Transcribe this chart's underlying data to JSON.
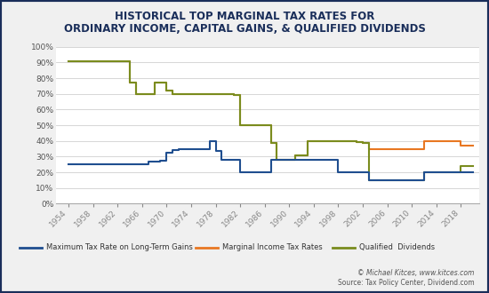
{
  "title_line1": "HISTORICAL TOP MARGINAL TAX RATES FOR",
  "title_line2": "ORDINARY INCOME, CAPITAL GAINS, & QUALIFIED DIVIDENDS",
  "title_color": "#1a2e5a",
  "background_color": "#f0f0f0",
  "plot_bg_color": "#ffffff",
  "border_color": "#1a2e5a",
  "years": [
    1954,
    1955,
    1956,
    1957,
    1958,
    1959,
    1960,
    1961,
    1962,
    1963,
    1964,
    1965,
    1966,
    1967,
    1968,
    1969,
    1970,
    1971,
    1972,
    1973,
    1974,
    1975,
    1976,
    1977,
    1978,
    1979,
    1980,
    1981,
    1982,
    1983,
    1984,
    1985,
    1986,
    1987,
    1988,
    1989,
    1990,
    1991,
    1992,
    1993,
    1994,
    1995,
    1996,
    1997,
    1998,
    1999,
    2000,
    2001,
    2002,
    2003,
    2004,
    2005,
    2006,
    2007,
    2008,
    2009,
    2010,
    2011,
    2012,
    2013,
    2014,
    2015,
    2016,
    2017,
    2018,
    2019,
    2020
  ],
  "marginal_income": [
    91,
    91,
    91,
    91,
    91,
    91,
    91,
    91,
    91,
    91,
    77,
    70,
    70,
    70,
    77,
    77,
    72,
    70,
    70,
    70,
    70,
    70,
    70,
    70,
    70,
    70,
    70,
    69.125,
    50,
    50,
    50,
    50,
    50,
    38.5,
    28,
    28,
    28,
    31,
    31,
    39.6,
    39.6,
    39.6,
    39.6,
    39.6,
    39.6,
    39.6,
    39.6,
    39.1,
    38.6,
    35,
    35,
    35,
    35,
    35,
    35,
    35,
    35,
    35,
    39.6,
    39.6,
    39.6,
    39.6,
    39.6,
    39.6,
    37,
    37,
    37
  ],
  "lt_capital_gains": [
    25,
    25,
    25,
    25,
    25,
    25,
    25,
    25,
    25,
    25,
    25,
    25,
    25,
    26.9,
    26.9,
    27.5,
    32.31,
    34.25,
    35,
    35,
    35,
    35,
    35,
    39.875,
    33.85,
    28,
    28,
    28,
    20,
    20,
    20,
    20,
    20,
    28,
    28,
    28,
    28,
    28,
    28,
    28,
    28,
    28,
    28,
    28,
    20,
    20,
    20,
    20,
    20,
    15,
    15,
    15,
    15,
    15,
    15,
    15,
    15,
    15,
    20,
    20,
    20,
    20,
    20,
    20,
    20,
    20,
    20
  ],
  "qualified_dividends": [
    91,
    91,
    91,
    91,
    91,
    91,
    91,
    91,
    91,
    91,
    77,
    70,
    70,
    70,
    77,
    77,
    72,
    70,
    70,
    70,
    70,
    70,
    70,
    70,
    70,
    70,
    70,
    69.125,
    50,
    50,
    50,
    50,
    50,
    38.5,
    28,
    28,
    28,
    31,
    31,
    39.6,
    39.6,
    39.6,
    39.6,
    39.6,
    39.6,
    39.6,
    39.6,
    39.1,
    38.6,
    15,
    15,
    15,
    15,
    15,
    15,
    15,
    15,
    15,
    20,
    20,
    20,
    20,
    20,
    20,
    23.8,
    23.8,
    23.8
  ],
  "line_color_marginal": "#e87722",
  "line_color_ltcg": "#1f4e8f",
  "line_color_qual_div": "#7a8c1e",
  "legend_labels": [
    "Maximum Tax Rate on Long-Term Gains",
    "Marginal Income Tax Rates",
    "Qualified  Dividends"
  ],
  "legend_colors": [
    "#1f4e8f",
    "#e87722",
    "#7a8c1e"
  ],
  "footer_italic": "© Michael Kitces, ",
  "footer_url": "www.kitces.com",
  "footer_text2": "Source: Tax Policy Center, Dividend.com",
  "ylim": [
    0,
    100
  ],
  "yticks": [
    0,
    10,
    20,
    30,
    40,
    50,
    60,
    70,
    80,
    90,
    100
  ],
  "xtick_years": [
    1954,
    1958,
    1962,
    1966,
    1970,
    1974,
    1978,
    1982,
    1986,
    1990,
    1994,
    1998,
    2002,
    2006,
    2010,
    2014,
    2018
  ]
}
